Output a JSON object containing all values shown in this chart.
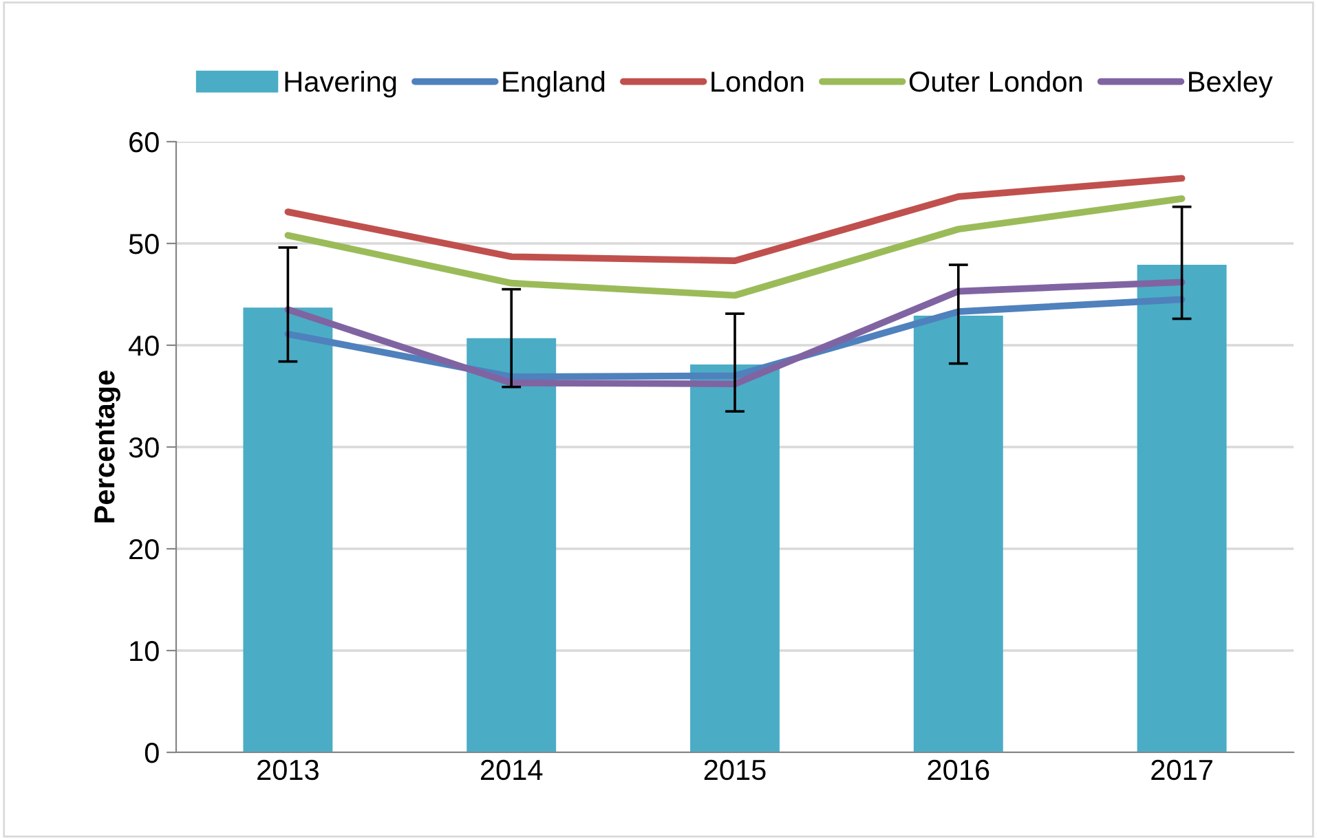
{
  "chart_data": {
    "type": "bar",
    "ylabel": "Percentage",
    "categories": [
      "2013",
      "2014",
      "2015",
      "2016",
      "2017"
    ],
    "series": [
      {
        "name": "Havering",
        "color": "#4bacc6",
        "values": [
          43.7,
          40.7,
          38.1,
          42.9,
          47.9
        ],
        "errors": [
          [
            38.4,
            49.6
          ],
          [
            35.9,
            45.5
          ],
          [
            33.5,
            43.1
          ],
          [
            38.2,
            47.9
          ],
          [
            42.6,
            53.6
          ]
        ]
      },
      {
        "name": "England",
        "type": "line",
        "color": "#4f81bd",
        "values": [
          41.1,
          36.9,
          37.0,
          43.3,
          44.5
        ]
      },
      {
        "name": "London",
        "type": "line",
        "color": "#c0504d",
        "values": [
          53.1,
          48.7,
          48.3,
          54.6,
          56.4
        ]
      },
      {
        "name": "Outer London",
        "type": "line",
        "color": "#9bbb59",
        "values": [
          50.8,
          46.1,
          44.9,
          51.4,
          54.4
        ]
      },
      {
        "name": "Bexley",
        "type": "line",
        "color": "#8064a2",
        "values": [
          43.5,
          36.3,
          36.2,
          45.3,
          46.2
        ]
      }
    ],
    "ylim": [
      0,
      60
    ],
    "yticks": [
      0,
      10,
      20,
      30,
      40,
      50,
      60
    ],
    "grid": "y",
    "legend": "top",
    "marker": "none",
    "line_style": "solid"
  }
}
